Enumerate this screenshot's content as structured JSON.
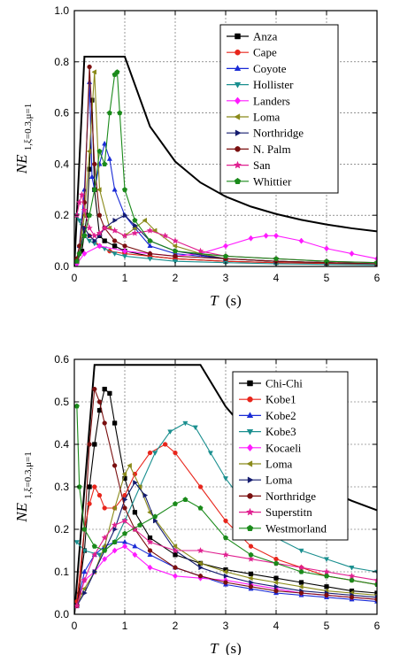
{
  "chart_data": [
    {
      "type": "line",
      "xlabel_main": "T",
      "xlabel_unit": "(s)",
      "ylabel_main": "NE",
      "ylabel_sub": "1,ξ=0.3,μ=1",
      "xlim": [
        0,
        6
      ],
      "ylim": [
        0,
        1.0
      ],
      "xticks": [
        "0",
        "1",
        "2",
        "3",
        "4",
        "5",
        "6"
      ],
      "yticks": [
        "0.0",
        "0.2",
        "0.4",
        "0.6",
        "0.8",
        "1.0"
      ],
      "xtick_values": [
        0,
        1,
        2,
        3,
        4,
        5,
        6
      ],
      "ytick_values": [
        0,
        0.2,
        0.4,
        0.6,
        0.8,
        1.0
      ],
      "grid": true,
      "legend_position": "top-right",
      "envelope": {
        "color": "#000000",
        "x": [
          0,
          0.2,
          1.0,
          1.5,
          2,
          2.5,
          3,
          3.5,
          4,
          4.5,
          5,
          5.5,
          6
        ],
        "y": [
          0,
          0.82,
          0.82,
          0.547,
          0.41,
          0.328,
          0.273,
          0.234,
          0.205,
          0.182,
          0.164,
          0.149,
          0.137
        ]
      },
      "series": [
        {
          "name": "Anza",
          "color": "#000000",
          "marker": "square",
          "x": [
            0.05,
            0.15,
            0.25,
            0.3,
            0.35,
            0.4,
            0.5,
            0.6,
            0.8,
            1.0,
            1.5,
            2,
            3,
            4,
            5,
            6
          ],
          "y": [
            0.02,
            0.06,
            0.2,
            0.38,
            0.65,
            0.3,
            0.12,
            0.1,
            0.08,
            0.06,
            0.04,
            0.03,
            0.02,
            0.015,
            0.012,
            0.01
          ]
        },
        {
          "name": "Cape",
          "color": "#e8251b",
          "marker": "circle",
          "x": [
            0.05,
            0.1,
            0.2,
            0.3,
            0.5,
            0.7,
            1.0,
            1.5,
            2,
            3,
            4,
            5,
            6
          ],
          "y": [
            0.02,
            0.05,
            0.15,
            0.12,
            0.08,
            0.06,
            0.05,
            0.04,
            0.03,
            0.02,
            0.015,
            0.012,
            0.01
          ]
        },
        {
          "name": "Coyote",
          "color": "#1a2bd6",
          "marker": "triangle-up",
          "x": [
            0.05,
            0.1,
            0.2,
            0.3,
            0.35,
            0.4,
            0.5,
            0.6,
            0.7,
            0.8,
            1.0,
            1.2,
            1.5,
            2,
            3,
            4,
            5,
            6
          ],
          "y": [
            0.03,
            0.08,
            0.3,
            0.72,
            0.35,
            0.3,
            0.4,
            0.48,
            0.42,
            0.3,
            0.2,
            0.15,
            0.08,
            0.05,
            0.03,
            0.02,
            0.015,
            0.01
          ]
        },
        {
          "name": "Hollister",
          "color": "#1a8f8f",
          "marker": "triangle-down",
          "x": [
            0.05,
            0.1,
            0.15,
            0.2,
            0.3,
            0.4,
            0.6,
            0.8,
            1.0,
            1.5,
            2,
            3,
            4,
            5,
            6
          ],
          "y": [
            0.2,
            0.18,
            0.16,
            0.12,
            0.1,
            0.09,
            0.07,
            0.05,
            0.04,
            0.03,
            0.02,
            0.015,
            0.01,
            0.008,
            0.006
          ]
        },
        {
          "name": "Landers",
          "color": "#ff1aff",
          "marker": "diamond",
          "x": [
            0.05,
            0.2,
            0.5,
            1.0,
            1.5,
            2.0,
            2.5,
            3.0,
            3.5,
            3.8,
            4.0,
            4.5,
            5.0,
            5.5,
            6.0
          ],
          "y": [
            0.01,
            0.05,
            0.08,
            0.06,
            0.05,
            0.04,
            0.05,
            0.08,
            0.11,
            0.12,
            0.12,
            0.1,
            0.07,
            0.05,
            0.03
          ]
        },
        {
          "name": "Loma",
          "color": "#8a8a1a",
          "marker": "triangle-left",
          "x": [
            0.05,
            0.1,
            0.2,
            0.3,
            0.4,
            0.5,
            0.7,
            1.0,
            1.2,
            1.4,
            1.6,
            2.0,
            2.5,
            3,
            4,
            5,
            6
          ],
          "y": [
            0.02,
            0.05,
            0.2,
            0.45,
            0.76,
            0.3,
            0.15,
            0.12,
            0.15,
            0.18,
            0.14,
            0.08,
            0.05,
            0.03,
            0.02,
            0.015,
            0.01
          ]
        },
        {
          "name": "Northridge",
          "color": "#141b6e",
          "marker": "triangle-right",
          "x": [
            0.05,
            0.1,
            0.2,
            0.3,
            0.4,
            0.5,
            0.6,
            0.8,
            1.0,
            1.2,
            1.5,
            2,
            3,
            4,
            5,
            6
          ],
          "y": [
            0.02,
            0.05,
            0.15,
            0.12,
            0.1,
            0.12,
            0.15,
            0.18,
            0.2,
            0.16,
            0.1,
            0.06,
            0.03,
            0.02,
            0.015,
            0.01
          ]
        },
        {
          "name": "N. Palm",
          "color": "#7a0f0f",
          "marker": "circle",
          "x": [
            0.05,
            0.1,
            0.2,
            0.3,
            0.4,
            0.5,
            0.6,
            0.8,
            1.0,
            1.5,
            2,
            3,
            4,
            5,
            6
          ],
          "y": [
            0.03,
            0.08,
            0.25,
            0.78,
            0.4,
            0.2,
            0.15,
            0.1,
            0.08,
            0.05,
            0.04,
            0.03,
            0.02,
            0.015,
            0.01
          ]
        },
        {
          "name": "San",
          "color": "#e02090",
          "marker": "star",
          "x": [
            0.05,
            0.1,
            0.15,
            0.2,
            0.3,
            0.4,
            0.5,
            0.6,
            0.8,
            1.0,
            1.2,
            1.5,
            1.8,
            2.0,
            2.5,
            3,
            4,
            5,
            6
          ],
          "y": [
            0.2,
            0.25,
            0.28,
            0.22,
            0.15,
            0.12,
            0.13,
            0.15,
            0.14,
            0.12,
            0.13,
            0.14,
            0.12,
            0.1,
            0.06,
            0.04,
            0.03,
            0.02,
            0.015
          ]
        },
        {
          "name": "Whittier",
          "color": "#1a8a1a",
          "marker": "pentagon",
          "x": [
            0.05,
            0.1,
            0.2,
            0.3,
            0.4,
            0.5,
            0.6,
            0.7,
            0.8,
            0.85,
            0.9,
            1.0,
            1.2,
            1.5,
            2,
            3,
            4,
            5,
            6
          ],
          "y": [
            0.02,
            0.05,
            0.12,
            0.2,
            0.3,
            0.45,
            0.4,
            0.6,
            0.75,
            0.76,
            0.6,
            0.3,
            0.18,
            0.1,
            0.06,
            0.04,
            0.03,
            0.02,
            0.015
          ]
        }
      ]
    },
    {
      "type": "line",
      "xlabel_main": "T",
      "xlabel_unit": "(s)",
      "ylabel_main": "NE",
      "ylabel_sub": "1,ξ=0.3,μ=1",
      "xlim": [
        0,
        6
      ],
      "ylim": [
        0,
        0.6
      ],
      "xticks": [
        "0",
        "1",
        "2",
        "3",
        "4",
        "5",
        "6"
      ],
      "yticks": [
        "0.0",
        "0.1",
        "0.2",
        "0.3",
        "0.4",
        "0.5",
        "0.6"
      ],
      "xtick_values": [
        0,
        1,
        2,
        3,
        4,
        5,
        6
      ],
      "ytick_values": [
        0,
        0.1,
        0.2,
        0.3,
        0.4,
        0.5,
        0.6
      ],
      "grid": true,
      "legend_position": "top-right",
      "envelope": {
        "color": "#000000",
        "x": [
          0,
          0.4,
          2.5,
          3,
          3.5,
          4,
          4.5,
          5,
          5.5,
          6
        ],
        "y": [
          0,
          0.587,
          0.587,
          0.489,
          0.419,
          0.367,
          0.326,
          0.293,
          0.267,
          0.245
        ]
      },
      "series": [
        {
          "name": "Chi-Chi",
          "color": "#000000",
          "marker": "square",
          "x": [
            0.05,
            0.2,
            0.3,
            0.4,
            0.5,
            0.6,
            0.7,
            0.8,
            1.0,
            1.2,
            1.5,
            2,
            2.5,
            3,
            3.5,
            4,
            4.5,
            5,
            5.5,
            6
          ],
          "y": [
            0.02,
            0.15,
            0.3,
            0.4,
            0.48,
            0.53,
            0.52,
            0.45,
            0.32,
            0.24,
            0.18,
            0.14,
            0.12,
            0.105,
            0.095,
            0.085,
            0.075,
            0.065,
            0.055,
            0.05
          ]
        },
        {
          "name": "Kobe1",
          "color": "#e8251b",
          "marker": "circle",
          "x": [
            0.05,
            0.2,
            0.3,
            0.4,
            0.5,
            0.6,
            0.8,
            1.0,
            1.2,
            1.5,
            1.8,
            2.0,
            2.5,
            3,
            3.5,
            4,
            4.5,
            5,
            5.5,
            6
          ],
          "y": [
            0.03,
            0.2,
            0.26,
            0.3,
            0.28,
            0.25,
            0.25,
            0.28,
            0.33,
            0.38,
            0.4,
            0.38,
            0.3,
            0.22,
            0.16,
            0.13,
            0.11,
            0.09,
            0.08,
            0.07
          ]
        },
        {
          "name": "Kobe2",
          "color": "#1a2bd6",
          "marker": "triangle-up",
          "x": [
            0.05,
            0.2,
            0.4,
            0.6,
            0.8,
            1.0,
            1.2,
            1.5,
            2,
            2.5,
            3,
            3.5,
            4,
            4.5,
            5,
            5.5,
            6
          ],
          "y": [
            0.02,
            0.1,
            0.14,
            0.16,
            0.17,
            0.17,
            0.16,
            0.14,
            0.11,
            0.09,
            0.07,
            0.06,
            0.05,
            0.045,
            0.04,
            0.035,
            0.03
          ]
        },
        {
          "name": "Kobe3",
          "color": "#1a8f8f",
          "marker": "triangle-down",
          "x": [
            0.05,
            0.2,
            0.5,
            0.8,
            1.0,
            1.3,
            1.6,
            1.9,
            2.2,
            2.4,
            2.7,
            3,
            3.5,
            4,
            4.5,
            5,
            5.5,
            6
          ],
          "y": [
            0.17,
            0.15,
            0.14,
            0.17,
            0.22,
            0.3,
            0.38,
            0.43,
            0.45,
            0.44,
            0.38,
            0.32,
            0.24,
            0.18,
            0.15,
            0.13,
            0.11,
            0.1
          ]
        },
        {
          "name": "Kocaeli",
          "color": "#ff1aff",
          "marker": "diamond",
          "x": [
            0.05,
            0.2,
            0.4,
            0.6,
            0.8,
            1.0,
            1.2,
            1.5,
            2,
            2.5,
            3,
            3.5,
            4,
            4.5,
            5,
            5.5,
            6
          ],
          "y": [
            0.02,
            0.08,
            0.1,
            0.13,
            0.15,
            0.16,
            0.14,
            0.11,
            0.09,
            0.085,
            0.08,
            0.07,
            0.06,
            0.05,
            0.045,
            0.04,
            0.035
          ]
        },
        {
          "name": "Loma",
          "color": "#8a8a1a",
          "marker": "triangle-left",
          "x": [
            0.05,
            0.2,
            0.4,
            0.6,
            0.8,
            1.0,
            1.1,
            1.3,
            1.5,
            2,
            2.5,
            3,
            3.5,
            4,
            4.5,
            5,
            5.5,
            6
          ],
          "y": [
            0.02,
            0.06,
            0.1,
            0.16,
            0.25,
            0.33,
            0.35,
            0.3,
            0.24,
            0.16,
            0.12,
            0.1,
            0.085,
            0.075,
            0.065,
            0.055,
            0.05,
            0.045
          ]
        },
        {
          "name": "Loma",
          "color": "#141b6e",
          "marker": "triangle-right",
          "x": [
            0.05,
            0.2,
            0.4,
            0.6,
            0.8,
            1.0,
            1.2,
            1.4,
            1.6,
            2,
            2.5,
            3,
            3.5,
            4,
            4.5,
            5,
            5.5,
            6
          ],
          "y": [
            0.02,
            0.05,
            0.1,
            0.15,
            0.2,
            0.27,
            0.31,
            0.28,
            0.22,
            0.15,
            0.11,
            0.09,
            0.075,
            0.065,
            0.055,
            0.05,
            0.045,
            0.04
          ]
        },
        {
          "name": "Northridge",
          "color": "#7a0f0f",
          "marker": "circle",
          "x": [
            0.05,
            0.1,
            0.2,
            0.3,
            0.4,
            0.5,
            0.6,
            0.8,
            1.0,
            1.2,
            1.5,
            2,
            2.5,
            3,
            3.5,
            4,
            4.5,
            5,
            5.5,
            6
          ],
          "y": [
            0.02,
            0.05,
            0.2,
            0.4,
            0.53,
            0.5,
            0.45,
            0.35,
            0.25,
            0.2,
            0.15,
            0.11,
            0.09,
            0.075,
            0.065,
            0.055,
            0.05,
            0.045,
            0.04,
            0.035
          ]
        },
        {
          "name": "Superstitn",
          "color": "#e02090",
          "marker": "star",
          "x": [
            0.05,
            0.2,
            0.4,
            0.6,
            0.8,
            1.0,
            1.2,
            1.5,
            2,
            2.5,
            3,
            3.5,
            4,
            4.5,
            5,
            5.5,
            6
          ],
          "y": [
            0.02,
            0.08,
            0.14,
            0.18,
            0.21,
            0.22,
            0.2,
            0.17,
            0.15,
            0.15,
            0.14,
            0.13,
            0.12,
            0.11,
            0.1,
            0.09,
            0.08
          ]
        },
        {
          "name": "Westmorland",
          "color": "#1a8a1a",
          "marker": "pentagon",
          "x": [
            0.05,
            0.1,
            0.2,
            0.4,
            0.6,
            0.8,
            1.0,
            1.3,
            1.6,
            2.0,
            2.2,
            2.5,
            3,
            3.5,
            4,
            4.5,
            5,
            5.5,
            6
          ],
          "y": [
            0.49,
            0.3,
            0.2,
            0.16,
            0.15,
            0.17,
            0.19,
            0.21,
            0.23,
            0.26,
            0.27,
            0.25,
            0.18,
            0.14,
            0.12,
            0.1,
            0.09,
            0.08,
            0.07
          ]
        }
      ]
    }
  ]
}
